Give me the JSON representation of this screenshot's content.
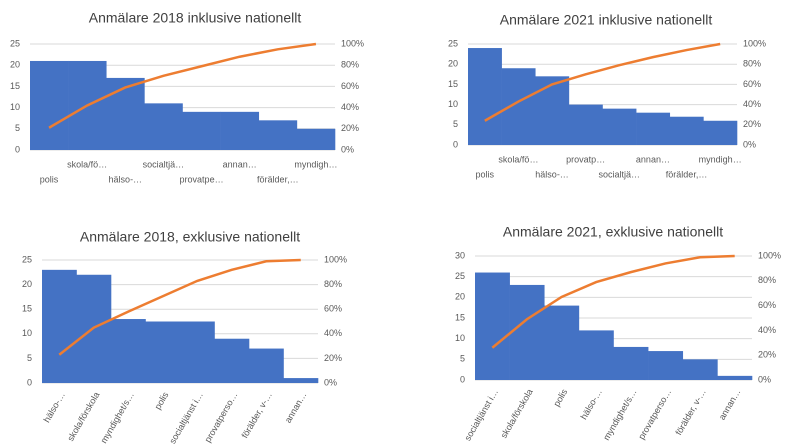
{
  "chart_data": [
    {
      "type": "pareto",
      "title": "Anmälare 2018 inklusive nationellt",
      "categories": [
        "polis",
        "skola/fö…",
        "hälso-…",
        "socialtjä…",
        "provatpe…",
        "annan…",
        "förälder,…",
        "myndigh…"
      ],
      "series": [
        {
          "type": "bar",
          "color": "#4472c4",
          "values": [
            21,
            21,
            17,
            11,
            9,
            9,
            7,
            5
          ]
        },
        {
          "type": "line",
          "axis": "y2",
          "color": "#ed7d31",
          "values": [
            21,
            42,
            59,
            70,
            79,
            88,
            95,
            100
          ]
        }
      ],
      "ylim": [
        0,
        25
      ],
      "yticks": [
        0,
        5,
        10,
        15,
        20,
        25
      ],
      "y2lim": [
        0,
        100
      ],
      "y2ticks": [
        {
          "value": 0,
          "label": "0%"
        },
        {
          "value": 20,
          "label": "20%"
        },
        {
          "value": 40,
          "label": "40%"
        },
        {
          "value": 60,
          "label": "60%"
        },
        {
          "value": 80,
          "label": "80%"
        },
        {
          "value": 100,
          "label": "100%"
        }
      ],
      "grid": true
    },
    {
      "type": "pareto",
      "title": "Anmälare 2021 inklusive nationellt",
      "categories": [
        "polis",
        "skola/fö…",
        "hälso-…",
        "provatp…",
        "socialtjä…",
        "annan…",
        "förälder,…",
        "myndigh…"
      ],
      "series": [
        {
          "type": "bar",
          "color": "#4472c4",
          "values": [
            24,
            19,
            17,
            10,
            9,
            8,
            7,
            6
          ]
        },
        {
          "type": "line",
          "axis": "y2",
          "color": "#ed7d31",
          "values": [
            24,
            43,
            60,
            70,
            79,
            87,
            94,
            100
          ]
        }
      ],
      "ylim": [
        0,
        25
      ],
      "yticks": [
        0,
        5,
        10,
        15,
        20,
        25
      ],
      "y2lim": [
        0,
        100
      ],
      "y2ticks": [
        {
          "value": 0,
          "label": "0%"
        },
        {
          "value": 20,
          "label": "20%"
        },
        {
          "value": 40,
          "label": "40%"
        },
        {
          "value": 60,
          "label": "60%"
        },
        {
          "value": 80,
          "label": "80%"
        },
        {
          "value": 100,
          "label": "100%"
        }
      ],
      "grid": true
    },
    {
      "type": "pareto",
      "title": "Anmälare 2018, exklusive nationellt",
      "categories": [
        "hälso-…",
        "skola/förskola",
        "myndighet/s…",
        "polis",
        "socialtjänst i…",
        "provatperso…",
        "förälder, v-…",
        "annan…"
      ],
      "series": [
        {
          "type": "bar",
          "color": "#4472c4",
          "values": [
            23,
            22,
            13,
            12.5,
            12.5,
            9,
            7,
            1
          ]
        },
        {
          "type": "line",
          "axis": "y2",
          "color": "#ed7d31",
          "values": [
            23,
            45,
            58,
            70.5,
            83,
            92,
            99,
            100
          ]
        }
      ],
      "ylim": [
        0,
        25
      ],
      "yticks": [
        0,
        5,
        10,
        15,
        20,
        25
      ],
      "y2lim": [
        0,
        100
      ],
      "y2ticks": [
        {
          "value": 0,
          "label": "0%"
        },
        {
          "value": 20,
          "label": "20%"
        },
        {
          "value": 40,
          "label": "40%"
        },
        {
          "value": 60,
          "label": "60%"
        },
        {
          "value": 80,
          "label": "80%"
        },
        {
          "value": 100,
          "label": "100%"
        }
      ],
      "grid": true
    },
    {
      "type": "pareto",
      "title": "Anmälare 2021, exklusive nationellt",
      "categories": [
        "socialtjänst i…",
        "skola/förskola",
        "polis",
        "hälso-…",
        "myndighet/s…",
        "provatperso…",
        "förälder, v-…",
        "annan…"
      ],
      "series": [
        {
          "type": "bar",
          "color": "#4472c4",
          "values": [
            26,
            23,
            18,
            12,
            8,
            7,
            5,
            1
          ]
        },
        {
          "type": "line",
          "axis": "y2",
          "color": "#ed7d31",
          "values": [
            26,
            49,
            67,
            79,
            87,
            94,
            99,
            100
          ]
        }
      ],
      "ylim": [
        0,
        30
      ],
      "yticks": [
        0,
        5,
        10,
        15,
        20,
        25,
        30
      ],
      "y2lim": [
        0,
        100
      ],
      "y2ticks": [
        {
          "value": 0,
          "label": "0%"
        },
        {
          "value": 20,
          "label": "20%"
        },
        {
          "value": 40,
          "label": "40%"
        },
        {
          "value": 60,
          "label": "60%"
        },
        {
          "value": 80,
          "label": "80%"
        },
        {
          "value": 100,
          "label": "100%"
        }
      ],
      "grid": true
    }
  ]
}
